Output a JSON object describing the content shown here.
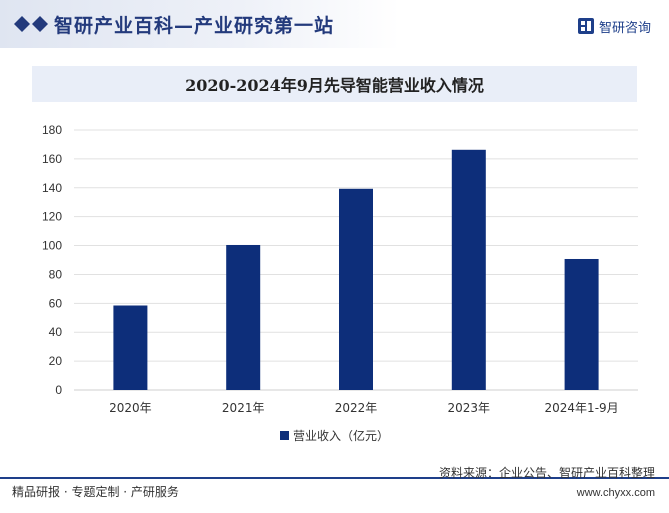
{
  "header": {
    "site_title": "智研产业百科—产业研究第一站",
    "brand_name": "智研咨询"
  },
  "colors": {
    "bar": "#0d2e7a",
    "header_accent": "#1e3f8a",
    "gridline": "#e1e1e1"
  },
  "chart_data": {
    "type": "bar",
    "title": "2020-2024年9月先导智能营业收入情况",
    "categories": [
      "2020年",
      "2021年",
      "2022年",
      "2023年",
      "2024年1-9月"
    ],
    "series": [
      {
        "name": "营业收入（亿元）",
        "values": [
          58.5,
          100.4,
          139.3,
          166.3,
          90.7
        ]
      }
    ],
    "ylim": [
      0,
      180
    ],
    "yticks": [
      0,
      20,
      40,
      60,
      80,
      100,
      120,
      140,
      160,
      180
    ],
    "grid": true,
    "legend_position": "bottom"
  },
  "footer": {
    "tagline": "精品研报 · 专题定制 · 产研服务",
    "source": "资料来源：企业公告、智研产业百科整理",
    "url": "www.chyxx.com"
  }
}
